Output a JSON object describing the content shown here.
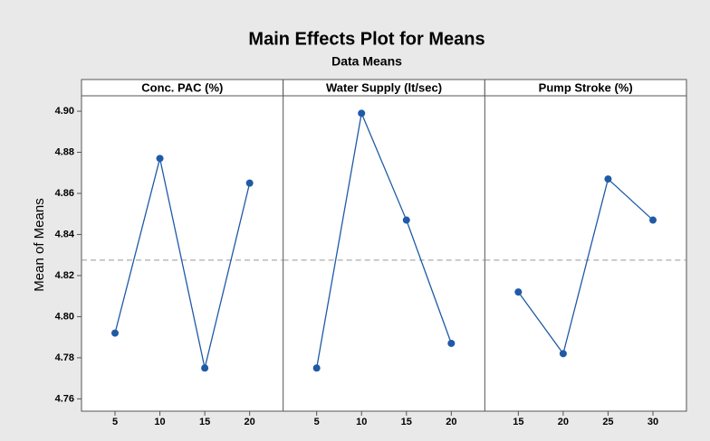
{
  "chart_data": {
    "type": "line",
    "title": "Main Effects Plot for Means",
    "subtitle": "Data Means",
    "ylabel": "Mean of Means",
    "ylim": [
      4.754,
      4.9075
    ],
    "yticks": [
      4.76,
      4.78,
      {
        "value": 4.8,
        "label": "4.80"
      },
      4.82,
      4.84,
      4.86,
      4.88,
      {
        "value": 4.9,
        "label": "4.90"
      }
    ],
    "reference_line": 4.8275,
    "color": "#1f5aa6",
    "reference_color": "#999999",
    "panels": [
      {
        "title": "Conc. PAC (%)",
        "categories": [
          "5",
          "10",
          "15",
          "20"
        ],
        "values": [
          4.792,
          4.877,
          4.775,
          4.865
        ]
      },
      {
        "title": "Water Supply (lt/sec)",
        "categories": [
          "5",
          "10",
          "15",
          "20"
        ],
        "values": [
          4.775,
          4.899,
          4.847,
          4.787
        ]
      },
      {
        "title": "Pump Stroke (%)",
        "categories": [
          "15",
          "20",
          "25",
          "30"
        ],
        "values": [
          4.812,
          4.782,
          4.867,
          4.847
        ]
      }
    ]
  }
}
